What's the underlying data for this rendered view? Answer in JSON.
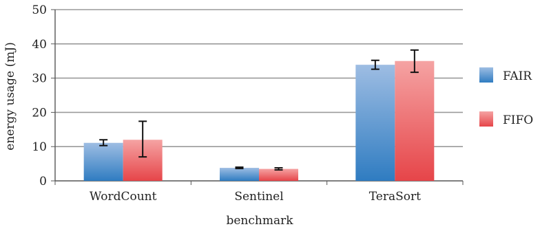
{
  "chart_data": {
    "type": "bar",
    "title": "",
    "xlabel": "benchmark",
    "ylabel": "energy usage (mJ)",
    "ylim": [
      0,
      50
    ],
    "yticks": [
      0,
      10,
      20,
      30,
      40,
      50
    ],
    "grid": true,
    "legend_position": "right",
    "categories": [
      "WordCount",
      "Sentinel",
      "TeraSort"
    ],
    "series": [
      {
        "name": "FAIR",
        "color_top": "#9ebde3",
        "color_bottom": "#2f7cc1",
        "values": [
          11.1,
          3.8,
          33.9
        ],
        "err_low": [
          10.3,
          3.6,
          32.6
        ],
        "err_high": [
          12.0,
          4.0,
          35.2
        ]
      },
      {
        "name": "FIFO",
        "color_top": "#f5a3a3",
        "color_bottom": "#e64549",
        "values": [
          12.0,
          3.5,
          35.0
        ],
        "err_low": [
          7.0,
          3.2,
          31.7
        ],
        "err_high": [
          17.4,
          3.8,
          38.2
        ]
      }
    ]
  }
}
